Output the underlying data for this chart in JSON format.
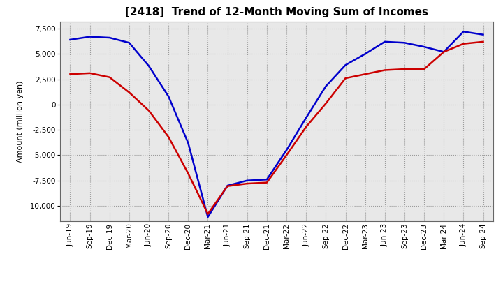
{
  "title": "[2418]  Trend of 12-Month Moving Sum of Incomes",
  "ylabel": "Amount (million yen)",
  "ylim": [
    -11500,
    8200
  ],
  "yticks": [
    -10000,
    -7500,
    -5000,
    -2500,
    0,
    2500,
    5000,
    7500
  ],
  "background_color": "#ffffff",
  "plot_bg_color": "#e8e8e8",
  "grid_color": "#888888",
  "x_labels": [
    "Jun-19",
    "Sep-19",
    "Dec-19",
    "Mar-20",
    "Jun-20",
    "Sep-20",
    "Dec-20",
    "Mar-21",
    "Jun-21",
    "Sep-21",
    "Dec-21",
    "Mar-22",
    "Jun-22",
    "Sep-22",
    "Dec-22",
    "Mar-23",
    "Jun-23",
    "Sep-23",
    "Dec-23",
    "Mar-24",
    "Jun-24",
    "Sep-24"
  ],
  "ordinary_income": [
    6400,
    6700,
    6600,
    6100,
    3800,
    800,
    -3800,
    -11100,
    -8000,
    -7500,
    -7400,
    -4500,
    -1300,
    1800,
    3900,
    5000,
    6200,
    6100,
    5700,
    5200,
    7200,
    6900
  ],
  "net_income": [
    3000,
    3100,
    2700,
    1200,
    -600,
    -3200,
    -6800,
    -10800,
    -8050,
    -7800,
    -7700,
    -5000,
    -2200,
    100,
    2600,
    3000,
    3400,
    3500,
    3500,
    5200,
    6000,
    6200
  ],
  "ordinary_color": "#0000cc",
  "net_color": "#cc0000",
  "line_width": 1.8,
  "title_fontsize": 11,
  "axis_label_fontsize": 8,
  "tick_fontsize": 7.5,
  "legend_fontsize": 9
}
